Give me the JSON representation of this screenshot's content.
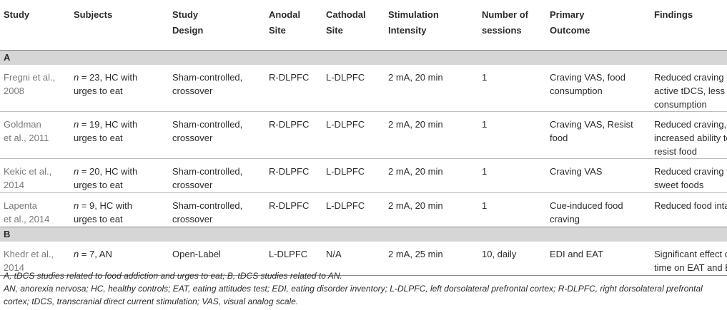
{
  "headers": [
    "Study",
    "Subjects",
    "Study Design",
    "Anodal Site",
    "Cathodal Site",
    "Stimulation Intensity",
    "Number of sessions",
    "Primary Outcome",
    "Findings"
  ],
  "headers_lines": [
    [
      "Study"
    ],
    [
      "Subjects"
    ],
    [
      "Study",
      "Design"
    ],
    [
      "Anodal",
      "Site"
    ],
    [
      "Cathodal",
      "Site"
    ],
    [
      "Stimulation",
      "Intensity"
    ],
    [
      "Number of",
      "sessions"
    ],
    [
      "Primary",
      "Outcome"
    ],
    [
      "Findings"
    ]
  ],
  "groups": [
    {
      "label": "A",
      "rows": [
        {
          "study": [
            "Fregni et al.,",
            "2008"
          ],
          "subjects_n": "n",
          "subjects_rest": " = 23, HC with",
          "subjects_line2": "urges to eat",
          "design": [
            "Sham-controlled,",
            "crossover"
          ],
          "anodal": "R-DLPFC",
          "cathodal": "L-DLPFC",
          "intensity": "2 mA, 20 min",
          "sessions": "1",
          "outcome": [
            "Craving VAS, food",
            "consumption"
          ],
          "findings": [
            "Reduced craving in",
            "active tDCS, less",
            "consumption"
          ]
        },
        {
          "study": [
            "Goldman",
            "et al., 2011"
          ],
          "subjects_n": "n",
          "subjects_rest": " = 19, HC with",
          "subjects_line2": "urges to eat",
          "design": [
            "Sham-controlled,",
            "crossover"
          ],
          "anodal": "R-DLPFC",
          "cathodal": "L-DLPFC",
          "intensity": "2 mA, 20 min",
          "sessions": "1",
          "outcome": [
            "Craving VAS, Resist",
            "food"
          ],
          "findings": [
            "Reduced craving,",
            "increased ability to",
            "resist food"
          ]
        },
        {
          "study": [
            "Kekic et al.,",
            "2014"
          ],
          "subjects_n": "n",
          "subjects_rest": " = 20, HC with",
          "subjects_line2": "urges to eat",
          "design": [
            "Sham-controlled,",
            "crossover"
          ],
          "anodal": "R-DLPFC",
          "cathodal": "L-DLPFC",
          "intensity": "2 mA, 20 min",
          "sessions": "1",
          "outcome": [
            "Craving VAS"
          ],
          "findings": [
            "Reduced craving for",
            "sweet foods"
          ]
        },
        {
          "study": [
            "Lapenta",
            "et al., 2014"
          ],
          "subjects_n": "n",
          "subjects_rest": " = 9, HC with",
          "subjects_line2": "urges to eat",
          "design": [
            "Sham-controlled,",
            "crossover"
          ],
          "anodal": "R-DLPFC",
          "cathodal": "L-DLPFC",
          "intensity": "2 mA, 20 min",
          "sessions": "1",
          "outcome": [
            "Cue-induced food",
            "craving"
          ],
          "findings": [
            "Reduced food intake"
          ]
        }
      ]
    },
    {
      "label": "B",
      "rows": [
        {
          "study": [
            "Khedr et al.,",
            "2014"
          ],
          "subjects_n": "n",
          "subjects_rest": " = 7, AN",
          "subjects_line2": "",
          "design": [
            "Open-Label"
          ],
          "anodal": "L-DLPFC",
          "cathodal": "N/A",
          "intensity": "2 mA, 25 min",
          "sessions": "10, daily",
          "outcome": [
            "EDI and EAT"
          ],
          "findings": [
            "Significant effect of",
            "time on EAT and EDI"
          ]
        }
      ]
    }
  ],
  "notes": [
    "A, tDCS studies related to food addiction and urges to eat; B, tDCS studies related to AN.",
    "AN, anorexia nervosa; HC, healthy controls; EAT, eating attitudes test; EDI, eating disorder inventory; L-DLPFC, left dorsolateral prefrontal cortex; R-DLPFC, right dorsolateral prefrontal",
    "cortex; tDCS, transcranial direct current stimulation; VAS, visual analog scale."
  ]
}
